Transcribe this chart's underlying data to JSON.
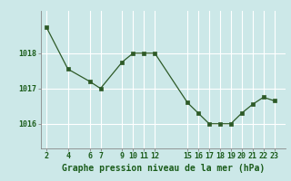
{
  "x": [
    2,
    4,
    6,
    7,
    9,
    10,
    11,
    12,
    15,
    16,
    17,
    18,
    19,
    20,
    21,
    22,
    23
  ],
  "y": [
    1018.75,
    1017.55,
    1017.2,
    1017.0,
    1017.75,
    1018.0,
    1018.0,
    1018.0,
    1016.6,
    1016.3,
    1016.0,
    1016.0,
    1016.0,
    1016.3,
    1016.55,
    1016.75,
    1016.65
  ],
  "xticks": [
    2,
    4,
    6,
    7,
    9,
    10,
    11,
    12,
    15,
    16,
    17,
    18,
    19,
    20,
    21,
    22,
    23
  ],
  "yticks": [
    1016,
    1017,
    1018
  ],
  "ylim": [
    1015.3,
    1019.2
  ],
  "xlim": [
    1.5,
    24.0
  ],
  "line_color": "#2d5a27",
  "marker_color": "#2d5a27",
  "bg_color": "#cce8e8",
  "grid_color": "#ffffff",
  "xlabel": "Graphe pression niveau de la mer (hPa)",
  "xlabel_color": "#1a5c1a",
  "tick_color": "#1a5c1a",
  "tick_fontsize": 6.0,
  "xlabel_fontsize": 7.0
}
